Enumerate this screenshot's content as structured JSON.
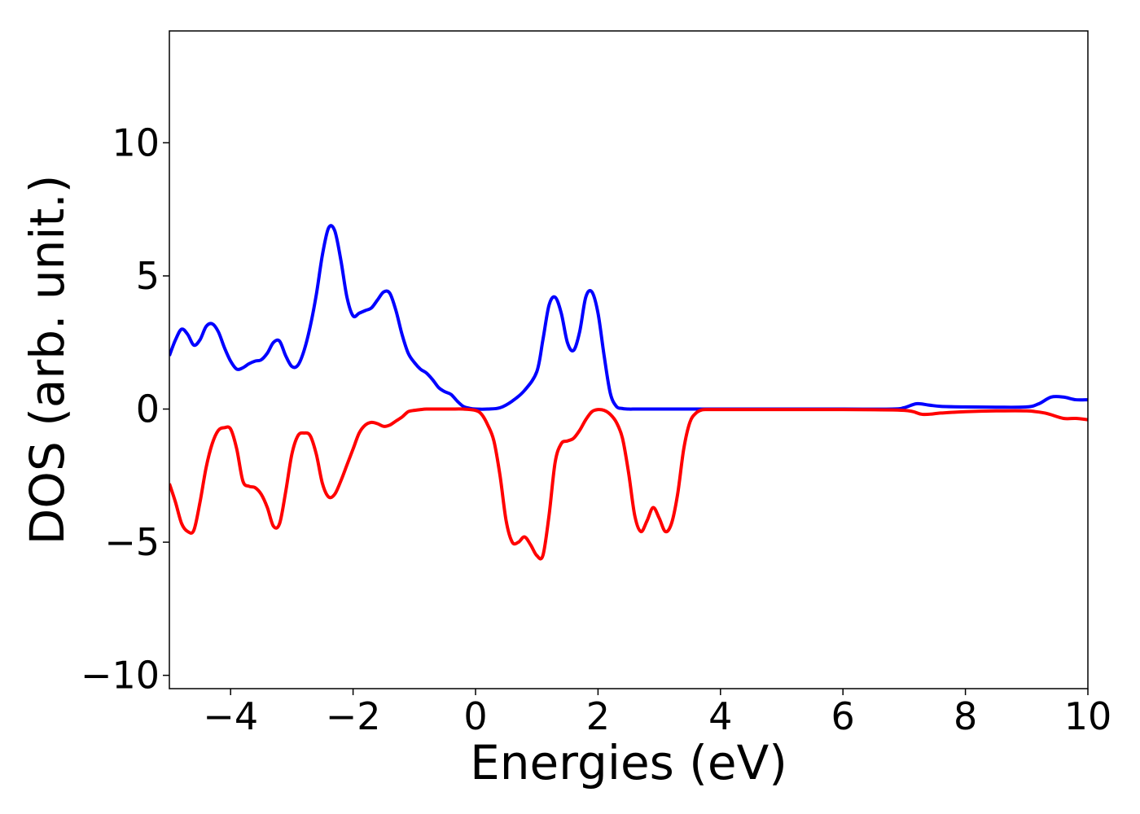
{
  "chart_data": {
    "type": "line",
    "title": "",
    "xlabel": "Energies (eV)",
    "ylabel": "DOS (arb. unit.)",
    "xlim": [
      -5,
      10
    ],
    "ylim": [
      -10.5,
      14.2
    ],
    "grid": false,
    "legend": "none",
    "x_ticks": [
      -4,
      -2,
      0,
      2,
      4,
      6,
      8,
      10
    ],
    "x_tick_labels": [
      "−4",
      "−2",
      "0",
      "2",
      "4",
      "6",
      "8",
      "10"
    ],
    "y_ticks": [
      -10,
      -5,
      0,
      5,
      10
    ],
    "y_tick_labels": [
      "−10",
      "−5",
      "0",
      "5",
      "10"
    ],
    "series": [
      {
        "color": "#0000ff",
        "x": [
          -5.0,
          -4.9,
          -4.8,
          -4.7,
          -4.6,
          -4.5,
          -4.4,
          -4.3,
          -4.2,
          -4.1,
          -4.0,
          -3.9,
          -3.8,
          -3.7,
          -3.6,
          -3.5,
          -3.4,
          -3.3,
          -3.2,
          -3.1,
          -3.0,
          -2.9,
          -2.8,
          -2.7,
          -2.6,
          -2.5,
          -2.4,
          -2.3,
          -2.2,
          -2.1,
          -2.0,
          -1.9,
          -1.8,
          -1.7,
          -1.6,
          -1.5,
          -1.4,
          -1.3,
          -1.2,
          -1.1,
          -1.0,
          -0.9,
          -0.8,
          -0.7,
          -0.6,
          -0.5,
          -0.4,
          -0.3,
          -0.2,
          -0.1,
          0.0,
          0.2,
          0.4,
          0.6,
          0.8,
          1.0,
          1.1,
          1.2,
          1.3,
          1.4,
          1.5,
          1.6,
          1.7,
          1.8,
          1.9,
          2.0,
          2.1,
          2.2,
          2.3,
          2.4,
          2.5,
          2.6,
          2.7,
          2.8,
          3.0,
          4.0,
          5.0,
          6.0,
          6.8,
          7.0,
          7.2,
          7.4,
          7.6,
          8.0,
          8.5,
          9.0,
          9.2,
          9.4,
          9.6,
          9.8,
          10.0
        ],
        "y": [
          2.0,
          2.6,
          3.0,
          2.8,
          2.4,
          2.6,
          3.1,
          3.2,
          2.9,
          2.3,
          1.8,
          1.5,
          1.55,
          1.7,
          1.8,
          1.85,
          2.1,
          2.5,
          2.55,
          2.0,
          1.6,
          1.65,
          2.2,
          3.1,
          4.3,
          5.8,
          6.8,
          6.7,
          5.6,
          4.2,
          3.5,
          3.6,
          3.7,
          3.8,
          4.1,
          4.4,
          4.35,
          3.7,
          2.8,
          2.1,
          1.75,
          1.5,
          1.35,
          1.1,
          0.8,
          0.65,
          0.55,
          0.3,
          0.1,
          0.03,
          0.0,
          0.0,
          0.05,
          0.3,
          0.7,
          1.4,
          2.6,
          3.9,
          4.2,
          3.6,
          2.5,
          2.2,
          2.9,
          4.2,
          4.4,
          3.6,
          2.0,
          0.6,
          0.1,
          0.02,
          0.0,
          0.0,
          0.0,
          0.0,
          0.0,
          0.0,
          0.0,
          0.0,
          0.0,
          0.05,
          0.2,
          0.15,
          0.1,
          0.08,
          0.07,
          0.08,
          0.2,
          0.45,
          0.45,
          0.35,
          0.35
        ]
      },
      {
        "color": "#ff0000",
        "x": [
          -5.0,
          -4.9,
          -4.8,
          -4.7,
          -4.6,
          -4.5,
          -4.4,
          -4.3,
          -4.2,
          -4.1,
          -4.0,
          -3.9,
          -3.8,
          -3.7,
          -3.6,
          -3.5,
          -3.4,
          -3.3,
          -3.2,
          -3.1,
          -3.0,
          -2.9,
          -2.8,
          -2.7,
          -2.6,
          -2.5,
          -2.4,
          -2.3,
          -2.2,
          -2.1,
          -2.0,
          -1.9,
          -1.8,
          -1.7,
          -1.6,
          -1.5,
          -1.4,
          -1.3,
          -1.2,
          -1.1,
          -1.0,
          -0.9,
          -0.8,
          -0.6,
          -0.4,
          -0.2,
          0.0,
          0.1,
          0.2,
          0.3,
          0.4,
          0.5,
          0.6,
          0.7,
          0.8,
          0.9,
          1.0,
          1.1,
          1.2,
          1.3,
          1.4,
          1.5,
          1.6,
          1.7,
          1.8,
          1.9,
          2.0,
          2.1,
          2.2,
          2.3,
          2.4,
          2.5,
          2.6,
          2.7,
          2.8,
          2.9,
          3.0,
          3.1,
          3.2,
          3.3,
          3.4,
          3.5,
          3.6,
          3.7,
          3.8,
          3.9,
          4.0,
          4.1,
          4.2,
          5.0,
          6.0,
          7.0,
          7.3,
          7.6,
          8.0,
          8.5,
          9.0,
          9.3,
          9.6,
          9.8,
          10.0
        ],
        "y": [
          -2.8,
          -3.5,
          -4.3,
          -4.6,
          -4.55,
          -3.5,
          -2.2,
          -1.3,
          -0.8,
          -0.7,
          -0.75,
          -1.5,
          -2.7,
          -2.9,
          -2.95,
          -3.2,
          -3.7,
          -4.4,
          -4.3,
          -3.1,
          -1.7,
          -1.0,
          -0.9,
          -1.0,
          -1.7,
          -2.8,
          -3.3,
          -3.2,
          -2.7,
          -2.1,
          -1.5,
          -0.9,
          -0.6,
          -0.5,
          -0.55,
          -0.65,
          -0.6,
          -0.45,
          -0.3,
          -0.1,
          -0.05,
          -0.02,
          0.0,
          0.0,
          0.0,
          0.0,
          -0.05,
          -0.2,
          -0.6,
          -1.2,
          -2.5,
          -4.2,
          -5.0,
          -5.0,
          -4.8,
          -5.1,
          -5.5,
          -5.5,
          -4.0,
          -2.0,
          -1.3,
          -1.2,
          -1.1,
          -0.8,
          -0.4,
          -0.1,
          -0.02,
          -0.05,
          -0.2,
          -0.5,
          -1.1,
          -2.4,
          -4.0,
          -4.6,
          -4.2,
          -3.7,
          -4.1,
          -4.6,
          -4.3,
          -3.2,
          -1.5,
          -0.5,
          -0.15,
          -0.03,
          -0.02,
          -0.02,
          -0.02,
          -0.02,
          -0.02,
          -0.02,
          -0.02,
          -0.05,
          -0.2,
          -0.15,
          -0.1,
          -0.07,
          -0.07,
          -0.15,
          -0.35,
          -0.35,
          -0.4
        ]
      }
    ]
  }
}
